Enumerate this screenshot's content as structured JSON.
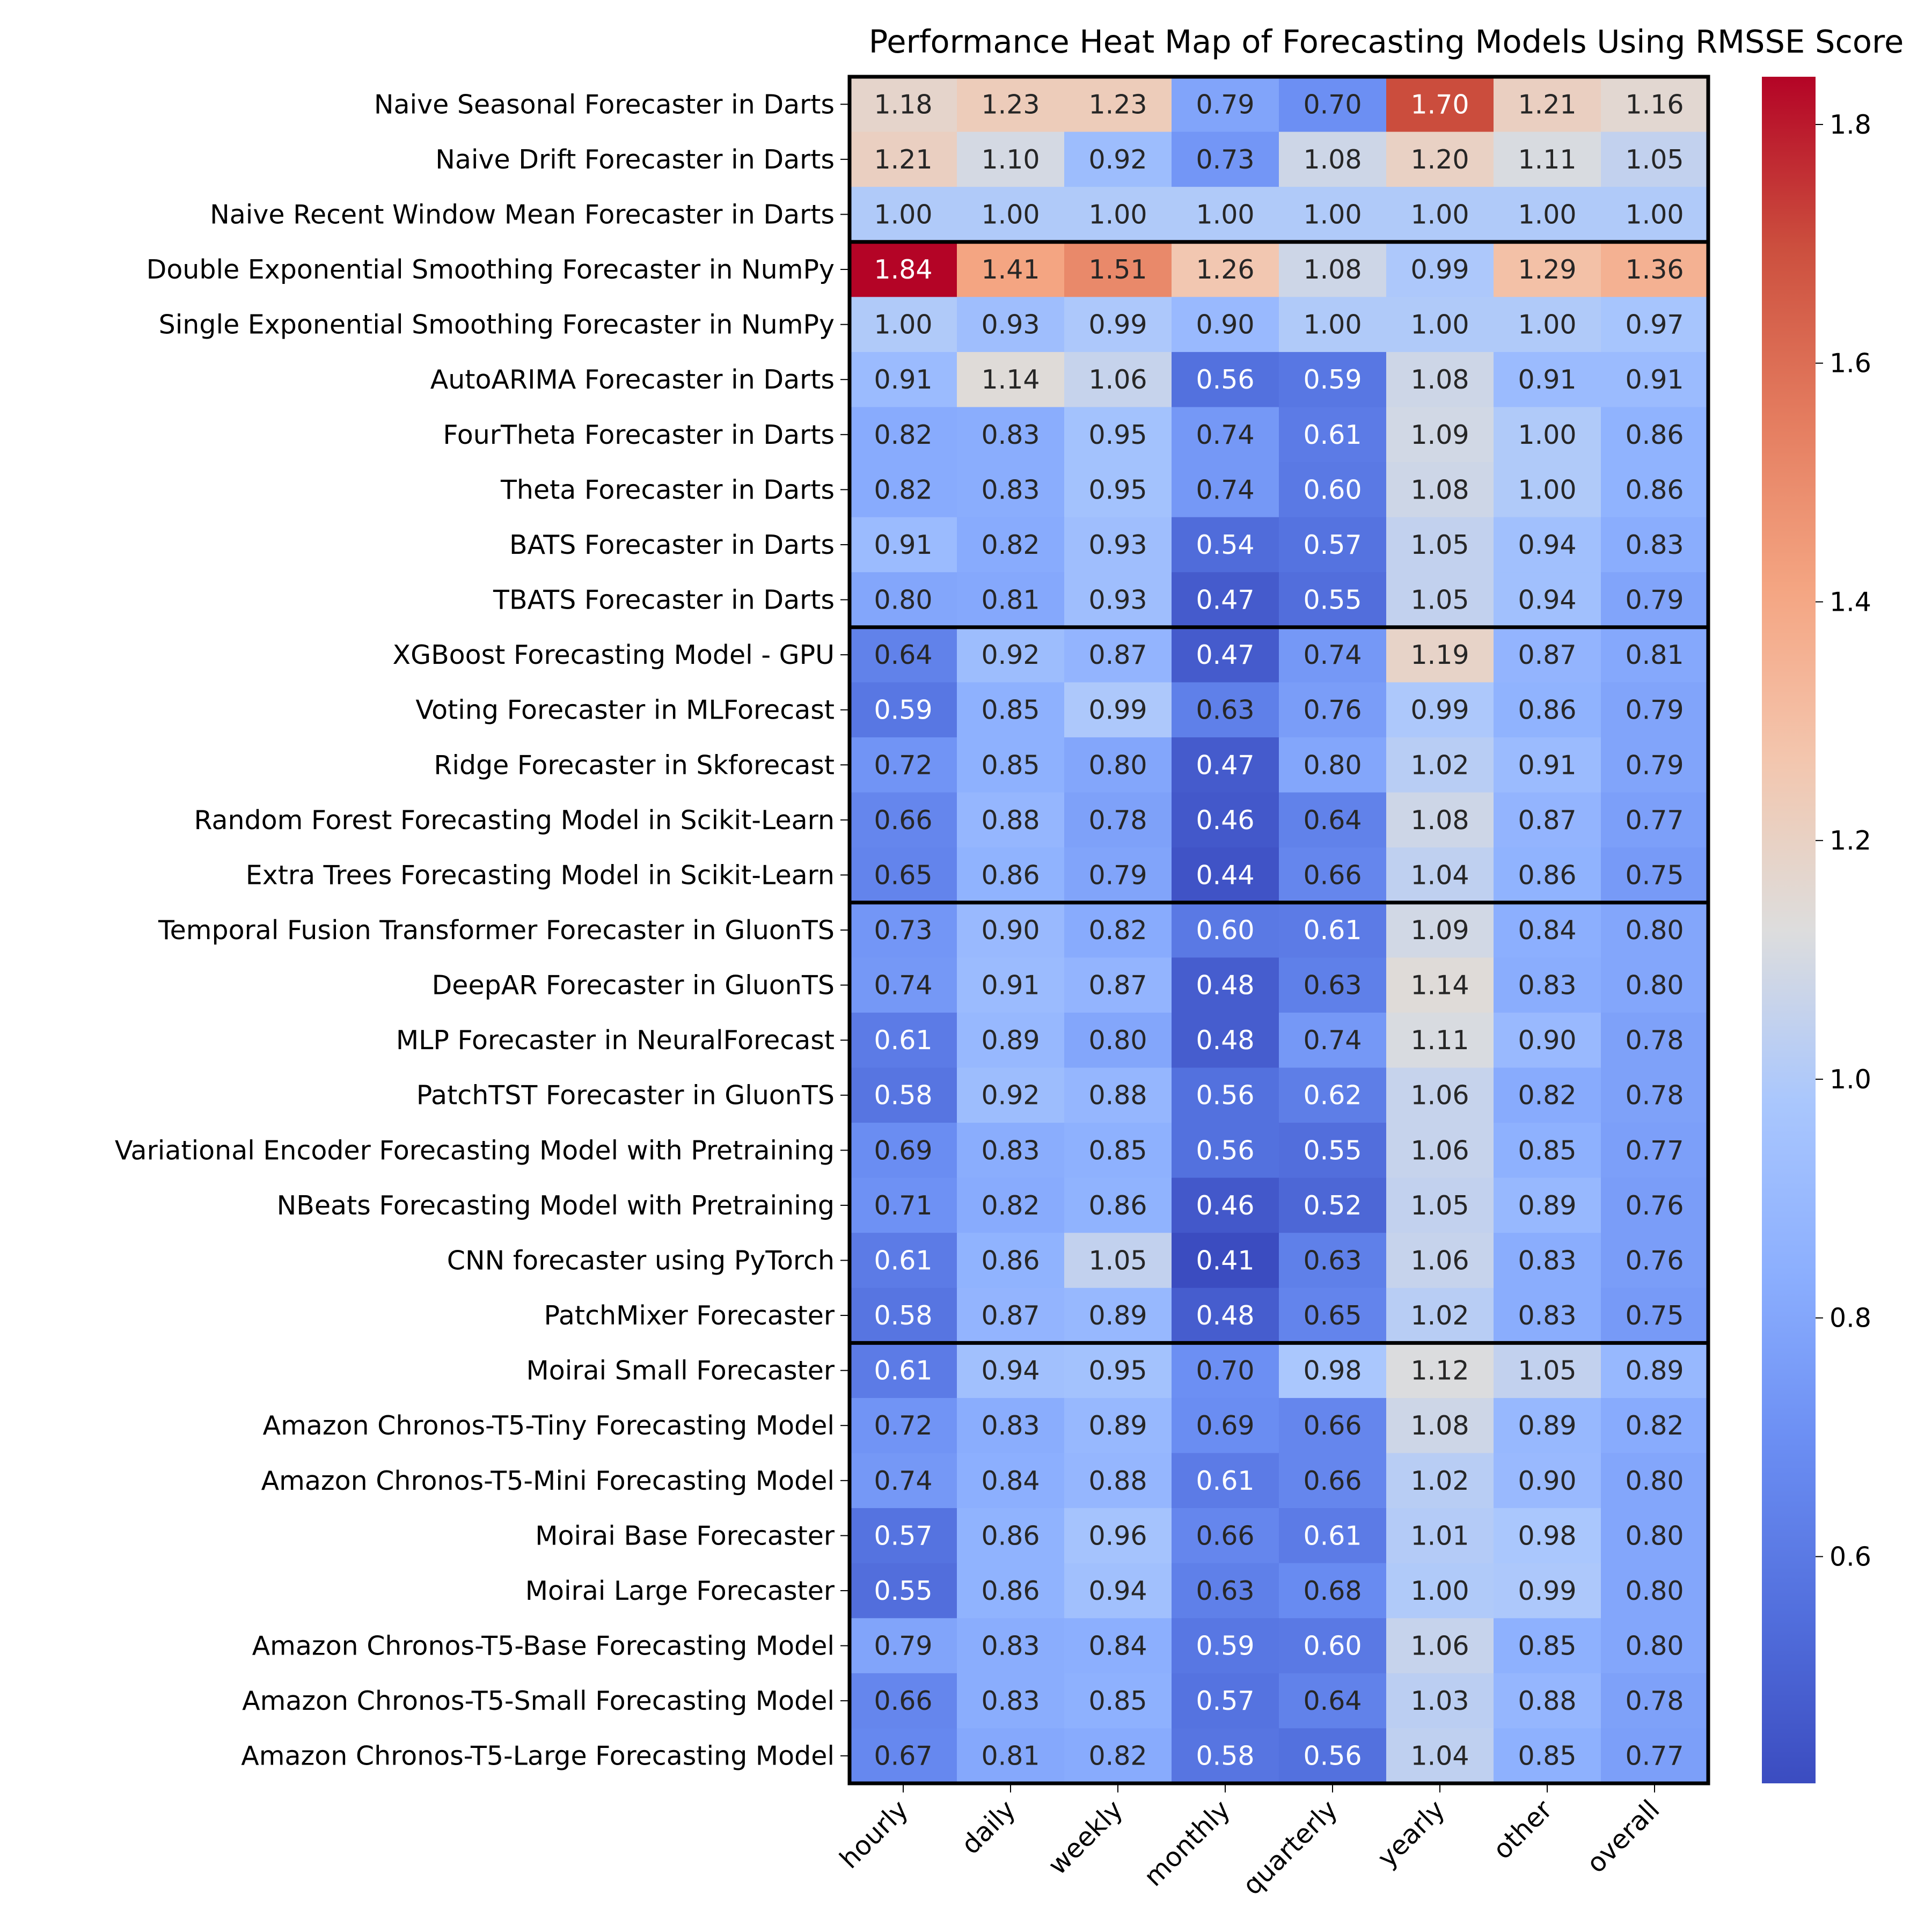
{
  "chart_data": {
    "type": "heatmap",
    "title": "Performance Heat Map of Forecasting Models Using RMSSE Score",
    "xlabel": "",
    "ylabel": "",
    "columns": [
      "hourly",
      "daily",
      "weekly",
      "monthly",
      "quarterly",
      "yearly",
      "other",
      "overall"
    ],
    "rows": [
      "Naive Seasonal Forecaster in Darts",
      "Naive Drift Forecaster in Darts",
      "Naive Recent Window Mean Forecaster in Darts",
      "Double Exponential Smoothing Forecaster in NumPy",
      "Single Exponential Smoothing Forecaster in NumPy",
      "AutoARIMA Forecaster in Darts",
      "FourTheta Forecaster in Darts",
      "Theta Forecaster in Darts",
      "BATS Forecaster in Darts",
      "TBATS Forecaster in Darts",
      "XGBoost Forecasting Model - GPU",
      "Voting Forecaster in MLForecast",
      "Ridge Forecaster in Skforecast",
      "Random Forest Forecasting Model in Scikit-Learn",
      "Extra Trees Forecasting Model in Scikit-Learn",
      "Temporal Fusion Transformer Forecaster in GluonTS",
      "DeepAR Forecaster in GluonTS",
      "MLP Forecaster in NeuralForecast",
      "PatchTST Forecaster in GluonTS",
      "Variational Encoder Forecasting Model with Pretraining",
      "NBeats Forecasting Model with Pretraining",
      "CNN forecaster using PyTorch",
      "PatchMixer Forecaster",
      "Moirai Small Forecaster",
      "Amazon Chronos-T5-Tiny Forecasting Model",
      "Amazon Chronos-T5-Mini Forecasting Model",
      "Moirai Base Forecaster",
      "Moirai Large Forecaster",
      "Amazon Chronos-T5-Base Forecasting Model",
      "Amazon Chronos-T5-Small Forecasting Model",
      "Amazon Chronos-T5-Large Forecasting Model"
    ],
    "values": [
      [
        1.18,
        1.23,
        1.23,
        0.79,
        0.7,
        1.7,
        1.21,
        1.16
      ],
      [
        1.21,
        1.1,
        0.92,
        0.73,
        1.08,
        1.2,
        1.11,
        1.05
      ],
      [
        1.0,
        1.0,
        1.0,
        1.0,
        1.0,
        1.0,
        1.0,
        1.0
      ],
      [
        1.84,
        1.41,
        1.51,
        1.26,
        1.08,
        0.99,
        1.29,
        1.36
      ],
      [
        1.0,
        0.93,
        0.99,
        0.9,
        1.0,
        1.0,
        1.0,
        0.97
      ],
      [
        0.91,
        1.14,
        1.06,
        0.56,
        0.59,
        1.08,
        0.91,
        0.91
      ],
      [
        0.82,
        0.83,
        0.95,
        0.74,
        0.61,
        1.09,
        1.0,
        0.86
      ],
      [
        0.82,
        0.83,
        0.95,
        0.74,
        0.6,
        1.08,
        1.0,
        0.86
      ],
      [
        0.91,
        0.82,
        0.93,
        0.54,
        0.57,
        1.05,
        0.94,
        0.83
      ],
      [
        0.8,
        0.81,
        0.93,
        0.47,
        0.55,
        1.05,
        0.94,
        0.79
      ],
      [
        0.64,
        0.92,
        0.87,
        0.47,
        0.74,
        1.19,
        0.87,
        0.81
      ],
      [
        0.59,
        0.85,
        0.99,
        0.63,
        0.76,
        0.99,
        0.86,
        0.79
      ],
      [
        0.72,
        0.85,
        0.8,
        0.47,
        0.8,
        1.02,
        0.91,
        0.79
      ],
      [
        0.66,
        0.88,
        0.78,
        0.46,
        0.64,
        1.08,
        0.87,
        0.77
      ],
      [
        0.65,
        0.86,
        0.79,
        0.44,
        0.66,
        1.04,
        0.86,
        0.75
      ],
      [
        0.73,
        0.9,
        0.82,
        0.6,
        0.61,
        1.09,
        0.84,
        0.8
      ],
      [
        0.74,
        0.91,
        0.87,
        0.48,
        0.63,
        1.14,
        0.83,
        0.8
      ],
      [
        0.61,
        0.89,
        0.8,
        0.48,
        0.74,
        1.11,
        0.9,
        0.78
      ],
      [
        0.58,
        0.92,
        0.88,
        0.56,
        0.62,
        1.06,
        0.82,
        0.78
      ],
      [
        0.69,
        0.83,
        0.85,
        0.56,
        0.55,
        1.06,
        0.85,
        0.77
      ],
      [
        0.71,
        0.82,
        0.86,
        0.46,
        0.52,
        1.05,
        0.89,
        0.76
      ],
      [
        0.61,
        0.86,
        1.05,
        0.41,
        0.63,
        1.06,
        0.83,
        0.76
      ],
      [
        0.58,
        0.87,
        0.89,
        0.48,
        0.65,
        1.02,
        0.83,
        0.75
      ],
      [
        0.61,
        0.94,
        0.95,
        0.7,
        0.98,
        1.12,
        1.05,
        0.89
      ],
      [
        0.72,
        0.83,
        0.89,
        0.69,
        0.66,
        1.08,
        0.89,
        0.82
      ],
      [
        0.74,
        0.84,
        0.88,
        0.61,
        0.66,
        1.02,
        0.9,
        0.8
      ],
      [
        0.57,
        0.86,
        0.96,
        0.66,
        0.61,
        1.01,
        0.98,
        0.8
      ],
      [
        0.55,
        0.86,
        0.94,
        0.63,
        0.68,
        1.0,
        0.99,
        0.8
      ],
      [
        0.79,
        0.83,
        0.84,
        0.59,
        0.6,
        1.06,
        0.85,
        0.8
      ],
      [
        0.66,
        0.83,
        0.85,
        0.57,
        0.64,
        1.03,
        0.88,
        0.78
      ],
      [
        0.67,
        0.81,
        0.82,
        0.58,
        0.56,
        1.04,
        0.85,
        0.77
      ]
    ],
    "group_row_counts": [
      3,
      7,
      5,
      8,
      8
    ],
    "colormap": "coolwarm",
    "color_range": [
      0.41,
      1.84
    ],
    "colorbar_ticks": [
      0.6,
      0.8,
      1.0,
      1.2,
      1.4,
      1.6,
      1.8
    ],
    "annotations": "cell values shown to 2 decimals",
    "light_text_threshold": 0.6
  }
}
